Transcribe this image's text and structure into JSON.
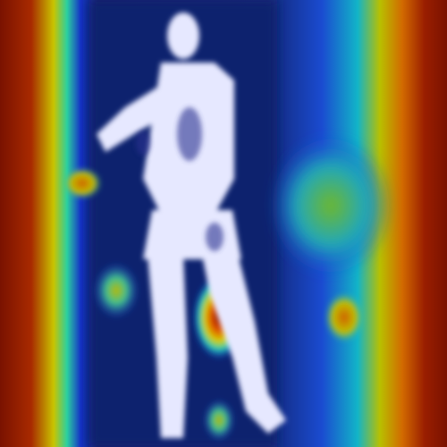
{
  "image": {
    "kind": "attention-heatmap-overlay",
    "subject": "standing-person-silhouette",
    "colormap": "jet",
    "palette": {
      "low": "#0c1a6e",
      "mid_low": "#1d5cff",
      "mid": "#18c6b8",
      "mid_high": "#a8c400",
      "high": "#e07a00",
      "peak": "#8a1600",
      "silhouette": "#e6e8ff"
    }
  }
}
